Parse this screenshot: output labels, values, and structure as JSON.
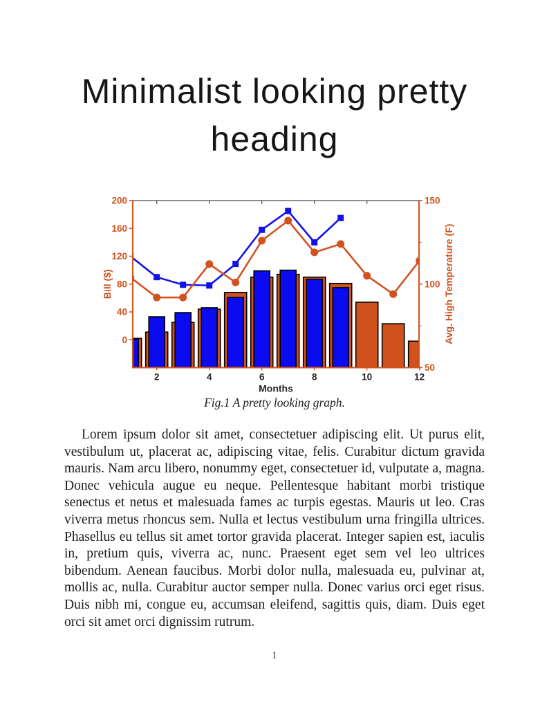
{
  "page": {
    "heading_lines": [
      "Minimalist looking pretty",
      "heading"
    ],
    "caption": "Fig.1 A pretty looking graph.",
    "body_text": "Lorem ipsum dolor sit amet, consectetuer adipiscing elit. Ut purus elit, vestibulum ut, placerat ac, adipiscing vitae, felis. Curabitur dictum gravida mauris. Nam arcu libero, nonummy eget, consectetuer id, vulputate a, magna. Donec vehicula augue eu neque. Pellentesque habitant morbi tristique senectus et netus et malesuada fames ac turpis egestas. Mauris ut leo. Cras viverra metus rhoncus sem. Nulla et lectus vestibulum urna fringilla ultrices. Phasellus eu tellus sit amet tortor gravida placerat. Integer sapien est, iaculis in, pretium quis, viverra ac, nunc. Praesent eget sem vel leo ultrices bibendum. Aenean faucibus. Morbi dolor nulla, malesuada eu, pulvinar at, mollis ac, nulla. Curabitur auctor semper nulla. Donec varius orci eget risus. Duis nibh mi, congue eu, accumsan eleifend, sagittis quis, diam. Duis eget orci sit amet orci dignissim rutrum.",
    "page_number": "1"
  },
  "chart_data": {
    "type": "combo-bar-line",
    "xlabel": "Months",
    "x_axis": {
      "ticks": [
        2,
        4,
        6,
        8,
        10,
        12
      ],
      "range_months": [
        1,
        12
      ],
      "tick_color": "#262626"
    },
    "left_axis": {
      "label": "Bill ($)",
      "ticks": [
        0,
        40,
        80,
        120,
        160,
        200
      ],
      "range": [
        -40,
        200
      ],
      "color": "#D2521E"
    },
    "right_axis": {
      "label": "Avg. High Temperature (F)",
      "ticks": [
        50,
        100,
        150
      ],
      "minor_ticks": [
        75,
        125
      ],
      "range": [
        50,
        150
      ],
      "color": "#D2521E"
    },
    "months": [
      1,
      2,
      3,
      4,
      5,
      6,
      7,
      8,
      9,
      10,
      11,
      12
    ],
    "series": [
      {
        "name": "orange-bars",
        "type": "bar",
        "axis": "left",
        "color": "#D2521E",
        "edge": "#000000",
        "values": [
          2,
          11,
          25,
          44,
          68,
          90,
          94,
          90,
          81,
          54,
          23,
          -2
        ]
      },
      {
        "name": "blue-bars",
        "type": "bar",
        "axis": "left",
        "color": "#0B0BEF",
        "edge": "#000000",
        "values": [
          1,
          33,
          39,
          46,
          61,
          99,
          100,
          87,
          75,
          null,
          null,
          null
        ]
      },
      {
        "name": "blue-line",
        "type": "line",
        "axis": "left",
        "marker": "square",
        "color": "#1212E8",
        "values": [
          120,
          90,
          79,
          78,
          109,
          158,
          185,
          140,
          175,
          null,
          null,
          null
        ]
      },
      {
        "name": "orange-line",
        "type": "line",
        "axis": "right",
        "marker": "circle",
        "color": "#D2521E",
        "values": [
          104,
          92,
          92,
          112,
          101,
          126,
          138,
          119,
          124,
          105,
          94,
          114
        ]
      }
    ]
  }
}
